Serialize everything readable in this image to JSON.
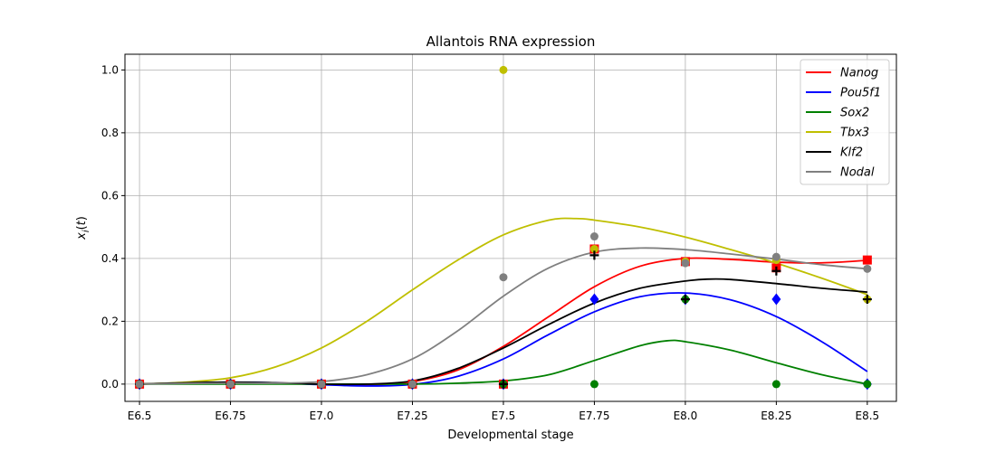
{
  "chart_data": {
    "type": "line",
    "title": "Allantois RNA expression",
    "xlabel": "Developmental stage",
    "ylabel": "x_i(t)",
    "categories": [
      "E6.5",
      "E6.75",
      "E7.0",
      "E7.25",
      "E7.5",
      "E7.75",
      "E8.0",
      "E8.25",
      "E8.5"
    ],
    "x_values": [
      6.5,
      6.75,
      7.0,
      7.25,
      7.5,
      7.75,
      8.0,
      8.25,
      8.5
    ],
    "xlim": [
      6.46,
      8.58
    ],
    "ylim": [
      -0.055,
      1.05
    ],
    "yticks": [
      0.0,
      0.2,
      0.4,
      0.6,
      0.8,
      1.0
    ],
    "ytick_labels": [
      "0.0",
      "0.2",
      "0.4",
      "0.6",
      "0.8",
      "1.0"
    ],
    "grid": true,
    "legend_position": "top-right",
    "series": [
      {
        "name": "Nanog",
        "color": "#ff0000",
        "marker": "square",
        "points": [
          [
            6.5,
            0.0
          ],
          [
            6.75,
            0.0
          ],
          [
            7.0,
            0.0
          ],
          [
            7.25,
            0.0
          ],
          [
            7.5,
            0.0
          ],
          [
            7.75,
            0.43
          ],
          [
            8.0,
            0.39
          ],
          [
            8.25,
            0.37
          ],
          [
            8.5,
            0.395
          ]
        ],
        "curve": [
          [
            6.5,
            0.0
          ],
          [
            6.625,
            0.003
          ],
          [
            6.75,
            0.005
          ],
          [
            6.875,
            0.004
          ],
          [
            7.0,
            0.0
          ],
          [
            7.125,
            -0.002
          ],
          [
            7.25,
            0.008
          ],
          [
            7.375,
            0.045
          ],
          [
            7.5,
            0.12
          ],
          [
            7.625,
            0.215
          ],
          [
            7.75,
            0.31
          ],
          [
            7.875,
            0.375
          ],
          [
            8.0,
            0.4
          ],
          [
            8.125,
            0.397
          ],
          [
            8.25,
            0.388
          ],
          [
            8.375,
            0.386
          ],
          [
            8.5,
            0.394
          ]
        ]
      },
      {
        "name": "Pou5f1",
        "color": "#0000ff",
        "marker": "diamond",
        "points": [
          [
            6.5,
            0.0
          ],
          [
            6.75,
            0.0
          ],
          [
            7.0,
            0.0
          ],
          [
            7.25,
            0.0
          ],
          [
            7.5,
            0.0
          ],
          [
            7.75,
            0.27
          ],
          [
            8.0,
            0.27
          ],
          [
            8.25,
            0.27
          ],
          [
            8.5,
            0.0
          ]
        ],
        "curve": [
          [
            6.5,
            0.0
          ],
          [
            6.625,
            0.004
          ],
          [
            6.75,
            0.006
          ],
          [
            6.875,
            0.004
          ],
          [
            7.0,
            -0.002
          ],
          [
            7.125,
            -0.006
          ],
          [
            7.25,
            -0.001
          ],
          [
            7.375,
            0.025
          ],
          [
            7.5,
            0.08
          ],
          [
            7.625,
            0.158
          ],
          [
            7.75,
            0.23
          ],
          [
            7.875,
            0.278
          ],
          [
            8.0,
            0.29
          ],
          [
            8.125,
            0.268
          ],
          [
            8.25,
            0.215
          ],
          [
            8.375,
            0.135
          ],
          [
            8.5,
            0.04
          ]
        ]
      },
      {
        "name": "Sox2",
        "color": "#008000",
        "marker": "circle",
        "points": [
          [
            6.5,
            0.0
          ],
          [
            6.75,
            0.0
          ],
          [
            7.0,
            0.0
          ],
          [
            7.25,
            0.0
          ],
          [
            7.5,
            0.0
          ],
          [
            7.75,
            0.0
          ],
          [
            8.0,
            0.27
          ],
          [
            8.25,
            0.0
          ],
          [
            8.5,
            0.0
          ]
        ],
        "curve": [
          [
            6.5,
            0.0
          ],
          [
            6.75,
            0.0
          ],
          [
            7.0,
            0.0
          ],
          [
            7.25,
            0.0
          ],
          [
            7.375,
            0.003
          ],
          [
            7.5,
            0.01
          ],
          [
            7.625,
            0.03
          ],
          [
            7.75,
            0.075
          ],
          [
            7.875,
            0.122
          ],
          [
            7.95,
            0.138
          ],
          [
            8.0,
            0.135
          ],
          [
            8.125,
            0.108
          ],
          [
            8.25,
            0.068
          ],
          [
            8.375,
            0.03
          ],
          [
            8.5,
            0.0
          ]
        ]
      },
      {
        "name": "Tbx3",
        "color": "#bfbf00",
        "marker": "circle",
        "points": [
          [
            6.5,
            0.0
          ],
          [
            6.75,
            0.0
          ],
          [
            7.0,
            0.0
          ],
          [
            7.25,
            0.0
          ],
          [
            7.5,
            1.0
          ],
          [
            7.75,
            0.43
          ],
          [
            8.0,
            0.39
          ],
          [
            8.25,
            0.395
          ],
          [
            8.5,
            0.27
          ]
        ],
        "curve": [
          [
            6.5,
            0.0
          ],
          [
            6.625,
            0.006
          ],
          [
            6.75,
            0.02
          ],
          [
            6.875,
            0.055
          ],
          [
            7.0,
            0.115
          ],
          [
            7.125,
            0.2
          ],
          [
            7.25,
            0.3
          ],
          [
            7.375,
            0.395
          ],
          [
            7.5,
            0.475
          ],
          [
            7.625,
            0.522
          ],
          [
            7.7,
            0.527
          ],
          [
            7.75,
            0.522
          ],
          [
            7.875,
            0.5
          ],
          [
            8.0,
            0.468
          ],
          [
            8.125,
            0.428
          ],
          [
            8.25,
            0.385
          ],
          [
            8.375,
            0.337
          ],
          [
            8.5,
            0.285
          ]
        ]
      },
      {
        "name": "Klf2",
        "color": "#000000",
        "marker": "plus",
        "points": [
          [
            6.5,
            0.0
          ],
          [
            6.75,
            0.0
          ],
          [
            7.0,
            0.0
          ],
          [
            7.25,
            0.0
          ],
          [
            7.5,
            0.0
          ],
          [
            7.75,
            0.41
          ],
          [
            8.0,
            0.27
          ],
          [
            8.25,
            0.36
          ],
          [
            8.5,
            0.27
          ]
        ],
        "curve": [
          [
            6.5,
            0.0
          ],
          [
            6.625,
            0.004
          ],
          [
            6.75,
            0.006
          ],
          [
            6.875,
            0.004
          ],
          [
            7.0,
            0.0
          ],
          [
            7.125,
            0.0
          ],
          [
            7.25,
            0.01
          ],
          [
            7.375,
            0.05
          ],
          [
            7.5,
            0.115
          ],
          [
            7.625,
            0.19
          ],
          [
            7.75,
            0.258
          ],
          [
            7.875,
            0.305
          ],
          [
            8.0,
            0.328
          ],
          [
            8.06,
            0.334
          ],
          [
            8.125,
            0.333
          ],
          [
            8.25,
            0.32
          ],
          [
            8.375,
            0.305
          ],
          [
            8.5,
            0.293
          ]
        ]
      },
      {
        "name": "Nodal",
        "color": "#808080",
        "marker": "circle",
        "points": [
          [
            6.5,
            0.0
          ],
          [
            6.75,
            0.0
          ],
          [
            7.0,
            0.0
          ],
          [
            7.25,
            0.0
          ],
          [
            7.5,
            0.34
          ],
          [
            7.75,
            0.47
          ],
          [
            8.0,
            0.385
          ],
          [
            8.25,
            0.405
          ],
          [
            8.5,
            0.367
          ]
        ],
        "curve": [
          [
            6.5,
            0.0
          ],
          [
            6.625,
            0.002
          ],
          [
            6.75,
            0.003
          ],
          [
            6.875,
            0.003
          ],
          [
            7.0,
            0.008
          ],
          [
            7.125,
            0.03
          ],
          [
            7.25,
            0.08
          ],
          [
            7.375,
            0.17
          ],
          [
            7.5,
            0.28
          ],
          [
            7.625,
            0.37
          ],
          [
            7.75,
            0.42
          ],
          [
            7.875,
            0.433
          ],
          [
            8.0,
            0.428
          ],
          [
            8.125,
            0.414
          ],
          [
            8.25,
            0.398
          ],
          [
            8.375,
            0.38
          ],
          [
            8.5,
            0.367
          ]
        ]
      }
    ]
  }
}
